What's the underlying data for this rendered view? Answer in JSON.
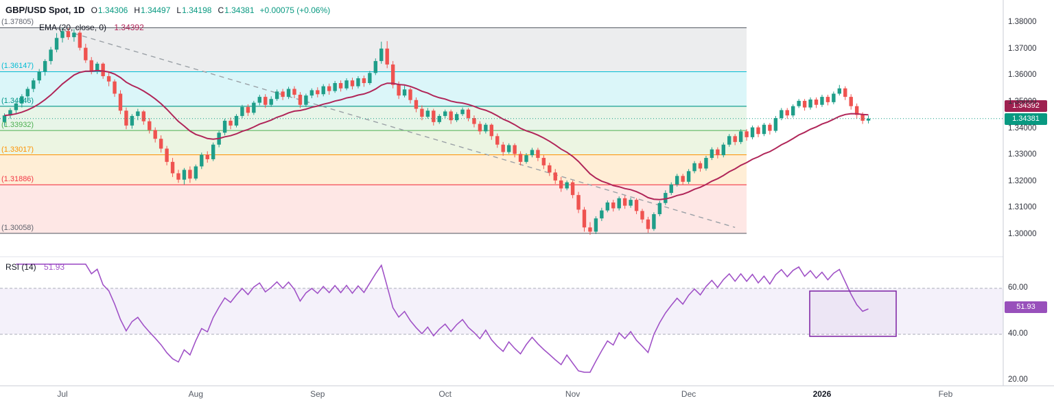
{
  "header": {
    "symbol": "GBP/USD Spot, 1D",
    "quote": [
      {
        "k": "O",
        "v": "1.34306"
      },
      {
        "k": "H",
        "v": "1.34497"
      },
      {
        "k": "L",
        "v": "1.34198"
      },
      {
        "k": "C",
        "v": "1.34381"
      }
    ],
    "change": "+0.00075 (+0.06%)"
  },
  "ema": {
    "label": "EMA (20, close, 0)",
    "value": "1.34392"
  },
  "rsi": {
    "label": "RSI (14)",
    "value": "51.93"
  },
  "badges": {
    "ema_price": "1.34392",
    "last_price": "1.34381",
    "rsi_value": "51.93"
  },
  "chart_data": {
    "type": "candlestick",
    "title": "GBP/USD Spot, 1D",
    "interval": "1D",
    "last_quote": {
      "o": 1.34306,
      "h": 1.34497,
      "l": 1.34198,
      "c": 1.34381,
      "change": "+0.00075 (+0.06%)"
    },
    "ema_period": 20,
    "ema_value": 1.34392,
    "rsi_period": 14,
    "rsi_value": 51.93,
    "rsi_guides": [
      60,
      40
    ],
    "y_ticks": [
      "1.38000",
      "1.37000",
      "1.36000",
      "1.35000",
      "1.34000",
      "1.33000",
      "1.32000",
      "1.31000",
      "1.30000"
    ],
    "rsi_ticks": [
      "60.00",
      "40.00",
      "20.00"
    ],
    "x_ticks": [
      {
        "t": "Jul"
      },
      {
        "t": "Aug"
      },
      {
        "t": "Sep"
      },
      {
        "t": "Oct"
      },
      {
        "t": "Nov"
      },
      {
        "t": "Dec"
      },
      {
        "t": "2026",
        "strong": true
      },
      {
        "t": "Feb"
      }
    ],
    "fib_levels": [
      {
        "price": 1.37805,
        "label": "(1.37805)",
        "line": "#60646e",
        "fill": "rgba(120,124,136,0.14)"
      },
      {
        "price": 1.36147,
        "label": "(1.36147)",
        "line": "#00bcd4",
        "fill": "rgba(0,188,212,0.14)"
      },
      {
        "price": 1.34846,
        "label": "(1.34846)",
        "line": "#009688",
        "fill": "rgba(76,175,80,0.13)"
      },
      {
        "price": 1.33932,
        "label": "(1.33932)",
        "line": "#4caf50",
        "fill": "rgba(139,195,74,0.16)"
      },
      {
        "price": 1.33017,
        "label": "(1.33017)",
        "line": "#ff9100",
        "fill": "rgba(255,152,0,0.16)"
      },
      {
        "price": 1.31886,
        "label": "(1.31886)",
        "line": "#f23645",
        "fill": "rgba(244,67,54,0.13)"
      },
      {
        "price": 1.30058,
        "label": "(1.30058)",
        "line": "#60646e",
        "fill": null
      }
    ],
    "colors": {
      "up": "#1f9e89",
      "down": "#ef5350",
      "ema": "#b02558",
      "ema_badge": "#9e2150",
      "last": "#089981",
      "rsi": "#a052c7",
      "rsi_badge": "#9850bb",
      "trend": "#9aa0a6",
      "box": "#7b1fa2"
    },
    "candles": [
      [
        1.3425,
        1.3458,
        1.341,
        1.345
      ],
      [
        1.345,
        1.3478,
        1.3438,
        1.347
      ],
      [
        1.347,
        1.3502,
        1.3455,
        1.3495
      ],
      [
        1.3495,
        1.353,
        1.348,
        1.3522
      ],
      [
        1.3522,
        1.3558,
        1.351,
        1.355
      ],
      [
        1.355,
        1.359,
        1.3538,
        1.3582
      ],
      [
        1.3582,
        1.3625,
        1.357,
        1.3615
      ],
      [
        1.3615,
        1.3662,
        1.36,
        1.3655
      ],
      [
        1.3655,
        1.3708,
        1.3642,
        1.3698
      ],
      [
        1.3698,
        1.376,
        1.3688,
        1.3742
      ],
      [
        1.3742,
        1.378,
        1.3725,
        1.3768
      ],
      [
        1.3768,
        1.3779,
        1.3735,
        1.3745
      ],
      [
        1.3745,
        1.3775,
        1.3728,
        1.3762
      ],
      [
        1.3762,
        1.377,
        1.3695,
        1.3705
      ],
      [
        1.3705,
        1.372,
        1.3648,
        1.3658
      ],
      [
        1.3658,
        1.367,
        1.3605,
        1.3618
      ],
      [
        1.3618,
        1.3652,
        1.3606,
        1.3645
      ],
      [
        1.3645,
        1.365,
        1.3588,
        1.3598
      ],
      [
        1.3598,
        1.3612,
        1.356,
        1.3578
      ],
      [
        1.3578,
        1.3586,
        1.352,
        1.3532
      ],
      [
        1.3532,
        1.3545,
        1.3455,
        1.3468
      ],
      [
        1.3468,
        1.348,
        1.3398,
        1.3412
      ],
      [
        1.3412,
        1.3455,
        1.34,
        1.3448
      ],
      [
        1.3448,
        1.3475,
        1.3432,
        1.3465
      ],
      [
        1.3465,
        1.347,
        1.3415,
        1.3428
      ],
      [
        1.3428,
        1.344,
        1.3382,
        1.3395
      ],
      [
        1.3395,
        1.3405,
        1.3348,
        1.3362
      ],
      [
        1.3362,
        1.3375,
        1.331,
        1.3325
      ],
      [
        1.3325,
        1.3335,
        1.3262,
        1.3275
      ],
      [
        1.3275,
        1.329,
        1.3218,
        1.3232
      ],
      [
        1.3232,
        1.3245,
        1.3196,
        1.3208
      ],
      [
        1.3208,
        1.3252,
        1.319,
        1.3245
      ],
      [
        1.3245,
        1.3258,
        1.3196,
        1.3212
      ],
      [
        1.3212,
        1.3265,
        1.3205,
        1.3258
      ],
      [
        1.3258,
        1.331,
        1.3248,
        1.3302
      ],
      [
        1.3302,
        1.3315,
        1.3272,
        1.3285
      ],
      [
        1.3285,
        1.3348,
        1.3278,
        1.334
      ],
      [
        1.334,
        1.3392,
        1.333,
        1.3385
      ],
      [
        1.3385,
        1.3438,
        1.3375,
        1.343
      ],
      [
        1.343,
        1.3442,
        1.3398,
        1.3412
      ],
      [
        1.3412,
        1.3455,
        1.3405,
        1.3448
      ],
      [
        1.3448,
        1.349,
        1.344,
        1.3482
      ],
      [
        1.3482,
        1.3492,
        1.3448,
        1.346
      ],
      [
        1.346,
        1.3505,
        1.3452,
        1.3498
      ],
      [
        1.3498,
        1.3528,
        1.3488,
        1.352
      ],
      [
        1.352,
        1.353,
        1.3478,
        1.349
      ],
      [
        1.349,
        1.3522,
        1.3482,
        1.3512
      ],
      [
        1.3512,
        1.3548,
        1.3505,
        1.354
      ],
      [
        1.354,
        1.355,
        1.3508,
        1.352
      ],
      [
        1.352,
        1.3558,
        1.3512,
        1.355
      ],
      [
        1.355,
        1.356,
        1.3515,
        1.3528
      ],
      [
        1.3528,
        1.3538,
        1.3478,
        1.349
      ],
      [
        1.349,
        1.3532,
        1.3482,
        1.3525
      ],
      [
        1.3525,
        1.3552,
        1.3515,
        1.3545
      ],
      [
        1.3545,
        1.3556,
        1.3518,
        1.353
      ],
      [
        1.353,
        1.3568,
        1.3522,
        1.356
      ],
      [
        1.356,
        1.357,
        1.3528,
        1.3542
      ],
      [
        1.3542,
        1.358,
        1.3535,
        1.3572
      ],
      [
        1.3572,
        1.3582,
        1.354,
        1.3552
      ],
      [
        1.3552,
        1.359,
        1.3545,
        1.3582
      ],
      [
        1.3582,
        1.3592,
        1.3548,
        1.356
      ],
      [
        1.356,
        1.3598,
        1.3552,
        1.359
      ],
      [
        1.359,
        1.36,
        1.3558,
        1.3572
      ],
      [
        1.3572,
        1.3618,
        1.3565,
        1.361
      ],
      [
        1.361,
        1.3665,
        1.3602,
        1.3655
      ],
      [
        1.3655,
        1.3728,
        1.3645,
        1.3702
      ],
      [
        1.3702,
        1.373,
        1.3628,
        1.3642
      ],
      [
        1.3642,
        1.3655,
        1.3552,
        1.3565
      ],
      [
        1.3565,
        1.3578,
        1.3512,
        1.3525
      ],
      [
        1.3525,
        1.3562,
        1.3518,
        1.3548
      ],
      [
        1.3548,
        1.3555,
        1.3495,
        1.3508
      ],
      [
        1.3508,
        1.3518,
        1.3462,
        1.3475
      ],
      [
        1.3475,
        1.3488,
        1.3432,
        1.3445
      ],
      [
        1.3445,
        1.3478,
        1.3438,
        1.3468
      ],
      [
        1.3468,
        1.3475,
        1.3412,
        1.3425
      ],
      [
        1.3425,
        1.3455,
        1.3418,
        1.3448
      ],
      [
        1.3448,
        1.3472,
        1.344,
        1.3465
      ],
      [
        1.3465,
        1.3472,
        1.3418,
        1.3432
      ],
      [
        1.3432,
        1.3462,
        1.3425,
        1.3455
      ],
      [
        1.3455,
        1.348,
        1.3448,
        1.3472
      ],
      [
        1.3472,
        1.3478,
        1.3428,
        1.344
      ],
      [
        1.344,
        1.345,
        1.3405,
        1.3418
      ],
      [
        1.3418,
        1.3428,
        1.3378,
        1.339
      ],
      [
        1.339,
        1.3422,
        1.3382,
        1.3415
      ],
      [
        1.3415,
        1.342,
        1.3358,
        1.3372
      ],
      [
        1.3372,
        1.3382,
        1.3328,
        1.334
      ],
      [
        1.334,
        1.335,
        1.3298,
        1.3312
      ],
      [
        1.3312,
        1.3345,
        1.3305,
        1.3338
      ],
      [
        1.3338,
        1.3345,
        1.3292,
        1.3305
      ],
      [
        1.3305,
        1.3315,
        1.3262,
        1.3275
      ],
      [
        1.3275,
        1.3308,
        1.3268,
        1.33
      ],
      [
        1.33,
        1.3328,
        1.3292,
        1.332
      ],
      [
        1.332,
        1.3328,
        1.3278,
        1.329
      ],
      [
        1.329,
        1.33,
        1.3248,
        1.3262
      ],
      [
        1.3262,
        1.3272,
        1.3222,
        1.3235
      ],
      [
        1.3235,
        1.3248,
        1.3192,
        1.3205
      ],
      [
        1.3205,
        1.3218,
        1.3162,
        1.3175
      ],
      [
        1.3175,
        1.3205,
        1.3168,
        1.3198
      ],
      [
        1.3198,
        1.3205,
        1.3138,
        1.315
      ],
      [
        1.315,
        1.3162,
        1.3082,
        1.3095
      ],
      [
        1.3095,
        1.3105,
        1.3012,
        1.3028
      ],
      [
        1.3028,
        1.3048,
        1.3,
        1.3012
      ],
      [
        1.3012,
        1.307,
        1.3003,
        1.3062
      ],
      [
        1.3062,
        1.3102,
        1.3052,
        1.3092
      ],
      [
        1.3092,
        1.313,
        1.3085,
        1.3122
      ],
      [
        1.3122,
        1.3132,
        1.3088,
        1.31
      ],
      [
        1.31,
        1.3145,
        1.3092,
        1.3138
      ],
      [
        1.3138,
        1.3148,
        1.3098,
        1.311
      ],
      [
        1.311,
        1.314,
        1.3102,
        1.3132
      ],
      [
        1.3132,
        1.3138,
        1.3078,
        1.309
      ],
      [
        1.309,
        1.3098,
        1.3045,
        1.3058
      ],
      [
        1.3058,
        1.3068,
        1.3008,
        1.3022
      ],
      [
        1.3022,
        1.3085,
        1.3015,
        1.3078
      ],
      [
        1.3078,
        1.3128,
        1.307,
        1.312
      ],
      [
        1.312,
        1.3168,
        1.3112,
        1.3158
      ],
      [
        1.3158,
        1.3198,
        1.315,
        1.319
      ],
      [
        1.319,
        1.323,
        1.3182,
        1.3222
      ],
      [
        1.3222,
        1.323,
        1.3188,
        1.32
      ],
      [
        1.32,
        1.3248,
        1.3192,
        1.324
      ],
      [
        1.324,
        1.3278,
        1.3232,
        1.327
      ],
      [
        1.327,
        1.3278,
        1.3238,
        1.325
      ],
      [
        1.325,
        1.3298,
        1.3242,
        1.329
      ],
      [
        1.329,
        1.333,
        1.3282,
        1.3322
      ],
      [
        1.3322,
        1.333,
        1.3288,
        1.33
      ],
      [
        1.33,
        1.3348,
        1.3292,
        1.334
      ],
      [
        1.334,
        1.338,
        1.3332,
        1.3372
      ],
      [
        1.3372,
        1.338,
        1.3338,
        1.335
      ],
      [
        1.335,
        1.3398,
        1.3342,
        1.339
      ],
      [
        1.339,
        1.3398,
        1.3355,
        1.3368
      ],
      [
        1.3368,
        1.3412,
        1.336,
        1.3405
      ],
      [
        1.3405,
        1.3412,
        1.3368,
        1.338
      ],
      [
        1.338,
        1.3422,
        1.3372,
        1.3415
      ],
      [
        1.3415,
        1.3422,
        1.3378,
        1.3392
      ],
      [
        1.3392,
        1.3448,
        1.3385,
        1.344
      ],
      [
        1.344,
        1.3478,
        1.3432,
        1.347
      ],
      [
        1.347,
        1.3478,
        1.3438,
        1.345
      ],
      [
        1.345,
        1.3492,
        1.3442,
        1.3485
      ],
      [
        1.3485,
        1.3512,
        1.3478,
        1.3505
      ],
      [
        1.3505,
        1.3512,
        1.3468,
        1.348
      ],
      [
        1.348,
        1.3518,
        1.3472,
        1.351
      ],
      [
        1.351,
        1.3518,
        1.3478,
        1.349
      ],
      [
        1.349,
        1.3528,
        1.3482,
        1.352
      ],
      [
        1.352,
        1.3528,
        1.3488,
        1.35
      ],
      [
        1.35,
        1.354,
        1.3492,
        1.3532
      ],
      [
        1.3532,
        1.3565,
        1.3525,
        1.3552
      ],
      [
        1.3552,
        1.356,
        1.3508,
        1.352
      ],
      [
        1.352,
        1.353,
        1.3472,
        1.3485
      ],
      [
        1.3485,
        1.3495,
        1.3438,
        1.3452
      ],
      [
        1.3452,
        1.3462,
        1.3418,
        1.343
      ],
      [
        1.34306,
        1.34497,
        1.34198,
        1.34381
      ]
    ]
  }
}
